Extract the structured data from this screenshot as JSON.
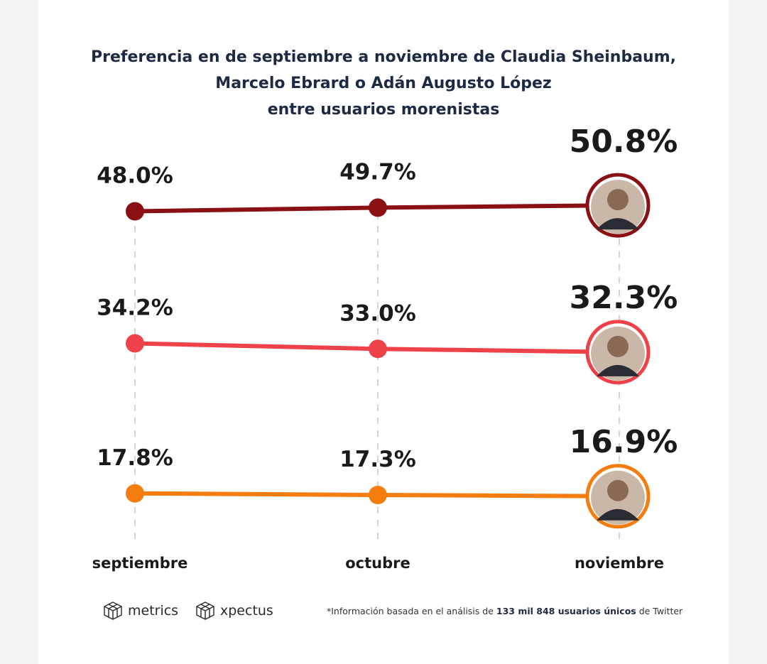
{
  "title_lines": [
    "Preferencia en de septiembre a noviembre de Claudia Sheinbaum,",
    "Marcelo Ebrard o Adán Augusto López",
    "entre usuarios morenistas"
  ],
  "chart_data": {
    "type": "line",
    "title": "Preferencia en de septiembre a noviembre de Claudia Sheinbaum, Marcelo Ebrard o Adán Augusto López entre usuarios morenistas",
    "categories": [
      "septiembre",
      "octubre",
      "noviembre"
    ],
    "series": [
      {
        "color": "#8b1014",
        "values": [
          48.0,
          49.7,
          50.8
        ],
        "labels": [
          "48.0%",
          "49.7%",
          "50.8%"
        ],
        "avatar": "person-photo-icon"
      },
      {
        "color": "#ef4149",
        "values": [
          34.2,
          33.0,
          32.3
        ],
        "labels": [
          "34.2%",
          "33.0%",
          "32.3%"
        ],
        "avatar": "person-photo-icon"
      },
      {
        "color": "#f57c0e",
        "values": [
          17.8,
          17.3,
          16.9
        ],
        "labels": [
          "17.8%",
          "17.3%",
          "16.9%"
        ],
        "avatar": "person-photo-icon"
      }
    ],
    "xlabel": "",
    "ylabel": "",
    "grid": "vertical dashed",
    "legend": "none"
  },
  "footer": {
    "logo1_text": "metrics",
    "logo1_icon": "cube-logo-icon",
    "logo2_text": "xpectus",
    "logo2_icon": "cube-logo-icon",
    "note_prefix": "*Información basada en el análisis de ",
    "note_bold": "133 mil 848 usuarios únicos",
    "note_suffix": " de Twitter"
  }
}
